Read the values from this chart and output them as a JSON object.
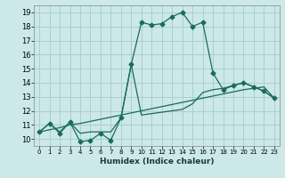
{
  "xlabel": "Humidex (Indice chaleur)",
  "bg_color": "#cce8e8",
  "grid_color": "#aacfcf",
  "line_color": "#1a6b5a",
  "xlim": [
    -0.5,
    23.5
  ],
  "ylim": [
    9.5,
    19.5
  ],
  "xticks": [
    0,
    1,
    2,
    3,
    4,
    5,
    6,
    7,
    8,
    9,
    10,
    11,
    12,
    13,
    14,
    15,
    16,
    17,
    18,
    19,
    20,
    21,
    22,
    23
  ],
  "yticks": [
    10,
    11,
    12,
    13,
    14,
    15,
    16,
    17,
    18,
    19
  ],
  "line1_x": [
    0,
    1,
    2,
    3,
    4,
    5,
    6,
    7,
    8,
    9,
    10,
    11,
    12,
    13,
    14,
    15,
    16,
    17,
    18,
    19,
    20,
    21,
    22,
    23
  ],
  "line1_y": [
    10.5,
    11.1,
    10.4,
    11.2,
    9.8,
    9.9,
    10.4,
    9.9,
    11.5,
    15.3,
    18.3,
    18.1,
    18.2,
    18.7,
    19.0,
    18.0,
    18.3,
    14.7,
    13.5,
    13.8,
    14.0,
    13.7,
    13.4,
    12.9
  ],
  "line2_x": [
    0,
    1,
    2,
    3,
    4,
    5,
    6,
    7,
    8,
    9,
    10,
    11,
    12,
    13,
    14,
    15,
    16,
    17,
    18,
    19,
    20,
    21,
    22,
    23
  ],
  "line2_y": [
    10.5,
    10.65,
    10.8,
    11.0,
    11.1,
    11.25,
    11.4,
    11.55,
    11.7,
    11.85,
    12.0,
    12.15,
    12.3,
    12.45,
    12.6,
    12.75,
    12.9,
    13.05,
    13.2,
    13.35,
    13.5,
    13.6,
    13.7,
    12.9
  ],
  "line3_x": [
    0,
    1,
    2,
    3,
    4,
    5,
    6,
    7,
    8,
    9,
    10,
    11,
    12,
    13,
    14,
    15,
    16,
    17,
    18,
    19,
    20,
    21,
    22,
    23
  ],
  "line3_y": [
    10.5,
    11.1,
    10.5,
    11.2,
    10.4,
    10.5,
    10.5,
    10.5,
    11.5,
    15.3,
    11.7,
    11.8,
    11.9,
    12.0,
    12.1,
    12.5,
    13.3,
    13.5,
    13.6,
    13.8,
    14.0,
    13.7,
    13.4,
    12.9
  ]
}
